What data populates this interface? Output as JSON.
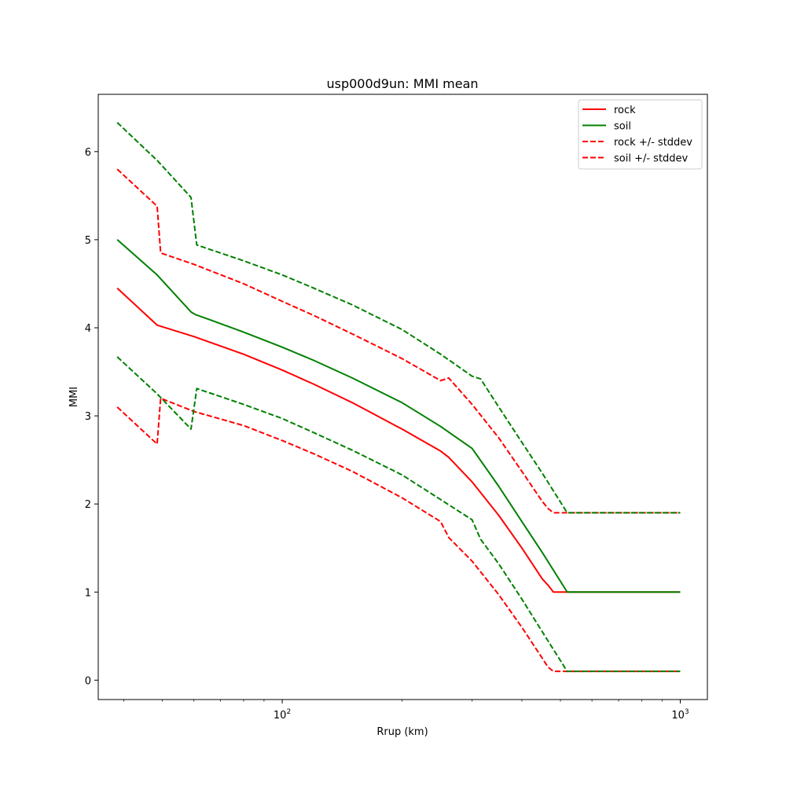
{
  "chart_data": {
    "type": "line",
    "title": "usp000d9un: MMI mean",
    "xlabel": "Rrup (km)",
    "ylabel": "MMI",
    "x_scale": "log",
    "xlim": [
      34.5,
      1170
    ],
    "ylim": [
      -0.22,
      6.65
    ],
    "x_ticks": [
      {
        "value": 100,
        "label_base": "10",
        "label_exp": "2"
      },
      {
        "value": 1000,
        "label_base": "10",
        "label_exp": "3"
      }
    ],
    "y_ticks": [
      0,
      1,
      2,
      3,
      4,
      5,
      6
    ],
    "grid": false,
    "legend_position": "top-right",
    "legend": [
      "rock",
      "soil",
      "rock +/- stddev",
      "soil +/- stddev"
    ],
    "series": [
      {
        "name": "rock",
        "color": "#ff0000",
        "style": "solid",
        "x": [
          38.5,
          48.5,
          60,
          80,
          100,
          120,
          150,
          200,
          250,
          262,
          300,
          350,
          400,
          450,
          465,
          480,
          1000
        ],
        "y": [
          4.45,
          4.03,
          3.9,
          3.7,
          3.52,
          3.36,
          3.15,
          2.85,
          2.6,
          2.53,
          2.25,
          1.87,
          1.5,
          1.15,
          1.08,
          1.0,
          1.0
        ]
      },
      {
        "name": "soil",
        "color": "#008000",
        "style": "solid",
        "x": [
          38.5,
          48.5,
          59,
          60.5,
          65,
          80,
          100,
          120,
          150,
          200,
          250,
          300,
          350,
          400,
          450,
          520,
          1000
        ],
        "y": [
          5.0,
          4.6,
          4.18,
          4.15,
          4.1,
          3.95,
          3.78,
          3.63,
          3.43,
          3.15,
          2.88,
          2.63,
          2.2,
          1.8,
          1.45,
          1.0,
          1.0
        ]
      },
      {
        "name": "rock +/- stddev",
        "color": "#ff0000",
        "style": "dashed",
        "x": [
          38.5,
          48.5,
          49.5,
          60,
          80,
          100,
          120,
          150,
          200,
          250,
          262,
          300,
          350,
          400,
          450,
          465,
          480,
          1000
        ],
        "y": [
          5.8,
          5.38,
          4.85,
          4.72,
          4.5,
          4.3,
          4.14,
          3.93,
          3.65,
          3.4,
          3.43,
          3.13,
          2.75,
          2.37,
          2.03,
          1.95,
          1.9,
          1.9
        ]
      },
      {
        "name": "rock +/- stddev (lower)",
        "color": "#ff0000",
        "style": "dashed",
        "x": [
          38.5,
          48.5,
          49.5,
          60,
          80,
          100,
          120,
          150,
          200,
          250,
          262,
          300,
          350,
          400,
          450,
          465,
          480,
          1000
        ],
        "y": [
          3.1,
          2.68,
          3.2,
          3.05,
          2.89,
          2.72,
          2.57,
          2.37,
          2.07,
          1.8,
          1.62,
          1.35,
          0.97,
          0.6,
          0.25,
          0.15,
          0.1,
          0.1
        ]
      },
      {
        "name": "soil +/- stddev",
        "color": "#008000",
        "style": "dashed",
        "x": [
          38.5,
          48.5,
          59,
          61,
          80,
          100,
          120,
          150,
          200,
          250,
          300,
          315,
          350,
          400,
          450,
          520,
          1000
        ],
        "y": [
          6.33,
          5.9,
          5.48,
          4.94,
          4.76,
          4.6,
          4.45,
          4.26,
          3.98,
          3.7,
          3.45,
          3.42,
          3.1,
          2.7,
          2.35,
          1.9,
          1.9
        ]
      },
      {
        "name": "soil +/- stddev (lower)",
        "color": "#008000",
        "style": "dashed",
        "x": [
          38.5,
          48.5,
          59,
          61,
          80,
          100,
          120,
          150,
          200,
          250,
          300,
          315,
          350,
          400,
          450,
          520,
          1000
        ],
        "y": [
          3.67,
          3.25,
          2.85,
          3.31,
          3.13,
          2.97,
          2.81,
          2.61,
          2.33,
          2.05,
          1.82,
          1.6,
          1.32,
          0.92,
          0.55,
          0.1,
          0.1
        ]
      }
    ]
  }
}
